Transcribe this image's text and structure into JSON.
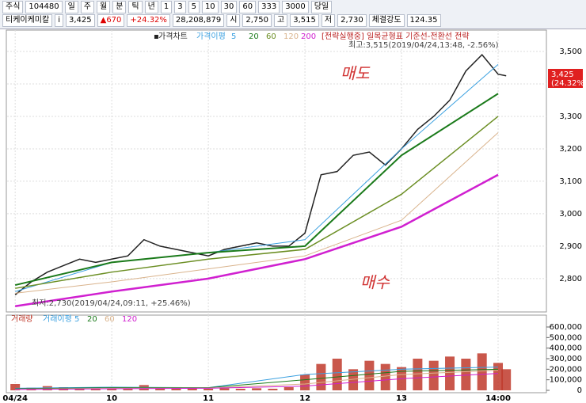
{
  "toolbar": {
    "row1": [
      "주식",
      "104480",
      "일",
      "주",
      "월",
      "분",
      "틱",
      "년",
      "1",
      "3",
      "5",
      "10",
      "30",
      "60",
      "333",
      "3000",
      "당일"
    ],
    "row2": [
      "티케이케미칼",
      "i",
      "3,425",
      "▲670",
      "+24.32%",
      "28,208,879",
      "시",
      "2,750",
      "고",
      "3,515",
      "저",
      "2,730",
      "체결강도",
      "124.35"
    ]
  },
  "chart_data": [
    {
      "type": "line",
      "x": [
        0,
        10,
        20,
        30,
        40,
        50,
        60,
        70,
        80,
        90,
        100,
        110,
        120,
        130,
        140,
        150,
        160,
        170,
        180,
        190,
        200,
        210,
        220,
        230,
        240,
        250,
        260,
        270,
        280,
        290,
        300,
        305
      ],
      "xlim": [
        -5,
        330
      ],
      "xticks": [
        {
          "value": 0,
          "label": "04/24"
        },
        {
          "value": 60,
          "label": "10"
        },
        {
          "value": 120,
          "label": "11"
        },
        {
          "value": 180,
          "label": "12"
        },
        {
          "value": 240,
          "label": "13"
        },
        {
          "value": 300,
          "label": "14:00"
        }
      ],
      "ylim": [
        2707,
        3561
      ],
      "yticks": [
        {
          "value": 2800,
          "label": "2,800"
        },
        {
          "value": 2900,
          "label": "2,900"
        },
        {
          "value": 3000,
          "label": "3,000"
        },
        {
          "value": 3100,
          "label": "3,100"
        },
        {
          "value": 3200,
          "label": "3,200"
        },
        {
          "value": 3300,
          "label": "3,300"
        },
        {
          "value": 3400,
          "label": "3,400"
        },
        {
          "value": 3500,
          "label": "3,500"
        }
      ],
      "grid": true,
      "series": [
        {
          "name": "가격차트",
          "color": "#222222",
          "values": [
            2750,
            2790,
            2820,
            2840,
            2860,
            2850,
            2860,
            2870,
            2920,
            2900,
            2890,
            2880,
            2870,
            2890,
            2900,
            2910,
            2900,
            2900,
            2940,
            3120,
            3130,
            3180,
            3190,
            3150,
            3200,
            3260,
            3300,
            3350,
            3440,
            3490,
            3430,
            3425
          ]
        },
        {
          "name": "5",
          "color": "#3aa0e0",
          "x": [
            0,
            60,
            120,
            180,
            240,
            300
          ],
          "values": [
            2760,
            2850,
            2880,
            2920,
            3200,
            3460
          ]
        },
        {
          "name": "20",
          "color": "#1a7a1a",
          "x": [
            0,
            60,
            120,
            180,
            240,
            300
          ],
          "values": [
            2780,
            2850,
            2880,
            2900,
            3180,
            3370
          ]
        },
        {
          "name": "60",
          "color": "#6b8e23",
          "x": [
            0,
            60,
            120,
            180,
            240,
            300
          ],
          "values": [
            2770,
            2820,
            2860,
            2890,
            3060,
            3300
          ]
        },
        {
          "name": "120",
          "color": "#d9b38c",
          "x": [
            0,
            60,
            120,
            180,
            240,
            300
          ],
          "values": [
            2755,
            2790,
            2830,
            2870,
            2980,
            3250
          ]
        },
        {
          "name": "200",
          "color": "#d020d0",
          "x": [
            0,
            60,
            120,
            180,
            240,
            300
          ],
          "values": [
            2715,
            2760,
            2800,
            2860,
            2960,
            3120
          ]
        }
      ],
      "legend_prefix": "가격이평",
      "legend_mark": "▪",
      "strategy": "[전략실행중] 일목균형표 기준선-전환선 전략",
      "high_note": "최고:3,515(2019/04/24,13:48, -2.56%)",
      "low_note": "최저:2,730(2019/04/24,09:11, +25.46%)",
      "last_price": "3,425",
      "last_change": "(24.32%)",
      "sell_note": "매도",
      "buy_note": "매수"
    },
    {
      "type": "bar",
      "x": [
        0,
        10,
        20,
        30,
        40,
        50,
        60,
        70,
        80,
        90,
        100,
        110,
        120,
        130,
        140,
        150,
        160,
        170,
        180,
        190,
        200,
        210,
        220,
        230,
        240,
        250,
        260,
        270,
        280,
        290,
        300,
        305
      ],
      "xlim": [
        -5,
        330
      ],
      "ylim": [
        0,
        660000
      ],
      "yticks": [
        0,
        {
          "value": 100000,
          "label": "100,000"
        },
        {
          "value": 200000,
          "label": "200,000"
        },
        {
          "value": 300000,
          "label": "300,000"
        },
        {
          "value": 400000,
          "label": "400,000"
        },
        {
          "value": 500000,
          "label": "500,000"
        },
        {
          "value": 600000,
          "label": "600,000"
        }
      ],
      "series": [
        {
          "name": "거래량",
          "color": "#c0392b",
          "values": [
            60000,
            25000,
            40000,
            30000,
            20000,
            25000,
            20000,
            30000,
            50000,
            20000,
            25000,
            20000,
            15000,
            20000,
            15000,
            20000,
            15000,
            30000,
            150000,
            250000,
            300000,
            200000,
            280000,
            250000,
            220000,
            300000,
            280000,
            320000,
            300000,
            350000,
            260000,
            200000
          ]
        },
        {
          "name": "거래이평 5",
          "color": "#3aa0e0",
          "x": [
            0,
            60,
            120,
            180,
            240,
            300
          ],
          "values": [
            20000,
            30000,
            25000,
            150000,
            200000,
            220000
          ]
        },
        {
          "name": "20",
          "color": "#1a7a1a",
          "x": [
            0,
            60,
            120,
            180,
            240,
            300
          ],
          "values": [
            15000,
            25000,
            25000,
            100000,
            180000,
            200000
          ]
        },
        {
          "name": "60",
          "color": "#d9b38c",
          "x": [
            0,
            60,
            120,
            180,
            240,
            300
          ],
          "values": [
            10000,
            20000,
            22000,
            60000,
            150000,
            190000
          ]
        },
        {
          "name": "120",
          "color": "#d020d0",
          "x": [
            0,
            60,
            120,
            180,
            240,
            300
          ],
          "values": [
            8000,
            15000,
            20000,
            40000,
            110000,
            160000
          ]
        }
      ]
    }
  ]
}
